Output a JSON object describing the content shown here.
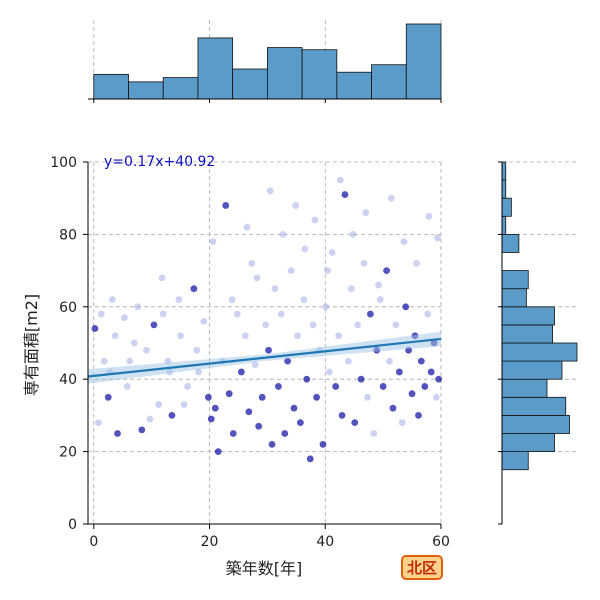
{
  "badge": {
    "text": "北区"
  },
  "colors": {
    "hist_fill": "#5a9bc9",
    "hist_edge": "#111111",
    "point_light": "#aab4e6",
    "point_dark": "#1a1aa8",
    "regression_line": "#1f77b4",
    "confidence_band": "#9fc6e6",
    "equation_text": "#1010c0",
    "grid": "#aaaaaa",
    "badge_border": "#e06010",
    "badge_fill": "#ffd28a",
    "badge_text": "#c02808"
  },
  "chart_data": {
    "type": "scatter",
    "xlabel": "築年数[年]",
    "ylabel": "専有面積[m2]",
    "xlim": [
      -1,
      60
    ],
    "ylim": [
      0,
      100
    ],
    "xticks": [
      0,
      20,
      40,
      60
    ],
    "yticks": [
      0,
      20,
      40,
      60,
      80,
      100
    ],
    "grid": true,
    "regression": {
      "equation": "y=0.17x+40.92",
      "slope": 0.17,
      "intercept": 40.92
    },
    "top_histogram": {
      "bin_edges": [
        0,
        6,
        12,
        18,
        24,
        30,
        36,
        42,
        48,
        54,
        60
      ],
      "counts": [
        23,
        16,
        20,
        57,
        28,
        48,
        46,
        25,
        32,
        70
      ]
    },
    "right_histogram": {
      "bin_edges": [
        15,
        20,
        25,
        30,
        35,
        40,
        45,
        50,
        55,
        60,
        65,
        70,
        75,
        80,
        85,
        90,
        95,
        100
      ],
      "counts": [
        14,
        28,
        36,
        34,
        24,
        32,
        40,
        27,
        28,
        13,
        14,
        0,
        9,
        2,
        5,
        2,
        2
      ]
    },
    "points": [
      [
        0.2,
        54,
        1
      ],
      [
        1.3,
        58,
        0
      ],
      [
        2.5,
        35,
        1
      ],
      [
        3.2,
        62,
        0
      ],
      [
        0.8,
        28,
        0
      ],
      [
        4.1,
        25,
        1
      ],
      [
        5.3,
        57,
        0
      ],
      [
        6.2,
        45,
        0
      ],
      [
        7,
        50,
        0
      ],
      [
        2.8,
        42,
        0
      ],
      [
        8.3,
        26,
        1
      ],
      [
        9.1,
        48,
        0
      ],
      [
        10.4,
        55,
        1
      ],
      [
        11.2,
        33,
        0
      ],
      [
        12,
        58,
        0
      ],
      [
        12.8,
        45,
        0
      ],
      [
        13.5,
        30,
        1
      ],
      [
        14.7,
        62,
        0
      ],
      [
        15,
        52,
        0
      ],
      [
        16.2,
        38,
        0
      ],
      [
        17.3,
        65,
        1
      ],
      [
        18.1,
        42,
        0
      ],
      [
        19,
        56,
        0
      ],
      [
        19.8,
        35,
        1
      ],
      [
        20.3,
        29,
        1
      ],
      [
        21,
        32,
        1
      ],
      [
        21.5,
        20,
        1
      ],
      [
        22.2,
        45,
        0
      ],
      [
        22.8,
        88,
        1
      ],
      [
        23.4,
        36,
        1
      ],
      [
        24.1,
        25,
        1
      ],
      [
        24.8,
        58,
        0
      ],
      [
        25.5,
        42,
        1
      ],
      [
        26.2,
        52,
        0
      ],
      [
        26.8,
        31,
        1
      ],
      [
        27.3,
        72,
        0
      ],
      [
        27.9,
        44,
        0
      ],
      [
        28.5,
        27,
        1
      ],
      [
        29.1,
        35,
        1
      ],
      [
        29.7,
        55,
        0
      ],
      [
        30.2,
        48,
        1
      ],
      [
        30.8,
        22,
        1
      ],
      [
        31.3,
        65,
        0
      ],
      [
        31.9,
        38,
        1
      ],
      [
        32.4,
        58,
        0
      ],
      [
        33,
        25,
        1
      ],
      [
        33.5,
        45,
        1
      ],
      [
        34.1,
        70,
        0
      ],
      [
        34.6,
        32,
        1
      ],
      [
        35.2,
        52,
        0
      ],
      [
        35.7,
        28,
        1
      ],
      [
        36.3,
        62,
        0
      ],
      [
        36.8,
        40,
        1
      ],
      [
        37.4,
        18,
        1
      ],
      [
        37.9,
        55,
        0
      ],
      [
        38.5,
        35,
        1
      ],
      [
        39,
        48,
        0
      ],
      [
        39.6,
        22,
        1
      ],
      [
        40.1,
        60,
        0
      ],
      [
        40.7,
        42,
        0
      ],
      [
        41.2,
        75,
        0
      ],
      [
        41.8,
        38,
        1
      ],
      [
        42.3,
        52,
        0
      ],
      [
        42.9,
        30,
        1
      ],
      [
        43.4,
        91,
        1
      ],
      [
        44,
        45,
        0
      ],
      [
        44.5,
        65,
        0
      ],
      [
        45.1,
        28,
        1
      ],
      [
        45.6,
        55,
        0
      ],
      [
        46.2,
        40,
        1
      ],
      [
        46.7,
        72,
        0
      ],
      [
        47.3,
        35,
        0
      ],
      [
        47.8,
        58,
        1
      ],
      [
        48.4,
        25,
        0
      ],
      [
        48.9,
        48,
        1
      ],
      [
        49.5,
        62,
        0
      ],
      [
        50,
        38,
        1
      ],
      [
        50.6,
        70,
        1
      ],
      [
        51.1,
        45,
        0
      ],
      [
        51.7,
        32,
        1
      ],
      [
        52.2,
        55,
        0
      ],
      [
        52.8,
        42,
        1
      ],
      [
        53.3,
        28,
        0
      ],
      [
        53.9,
        60,
        1
      ],
      [
        54.4,
        48,
        1
      ],
      [
        55,
        36,
        1
      ],
      [
        55.5,
        52,
        1
      ],
      [
        56.1,
        30,
        1
      ],
      [
        56.6,
        45,
        1
      ],
      [
        57.2,
        38,
        1
      ],
      [
        57.7,
        58,
        0
      ],
      [
        58.3,
        42,
        1
      ],
      [
        58.8,
        50,
        1
      ],
      [
        59.2,
        35,
        0
      ],
      [
        59.6,
        40,
        1
      ],
      [
        1.8,
        45,
        0
      ],
      [
        3.7,
        52,
        0
      ],
      [
        5.8,
        38,
        0
      ],
      [
        7.6,
        60,
        0
      ],
      [
        9.7,
        29,
        0
      ],
      [
        11.8,
        68,
        0
      ],
      [
        13.1,
        42,
        0
      ],
      [
        15.6,
        33,
        0
      ],
      [
        17.8,
        48,
        0
      ],
      [
        20.6,
        78,
        0
      ],
      [
        23.9,
        62,
        0
      ],
      [
        26.5,
        82,
        0
      ],
      [
        28.2,
        68,
        0
      ],
      [
        30.5,
        92,
        0
      ],
      [
        32.7,
        80,
        0
      ],
      [
        34.9,
        88,
        0
      ],
      [
        36.5,
        76,
        0
      ],
      [
        38.2,
        84,
        0
      ],
      [
        40.4,
        70,
        0
      ],
      [
        42.6,
        95,
        0
      ],
      [
        44.8,
        80,
        0
      ],
      [
        47,
        86,
        0
      ],
      [
        49.2,
        66,
        0
      ],
      [
        51.4,
        90,
        0
      ],
      [
        53.6,
        78,
        0
      ],
      [
        55.8,
        72,
        0
      ],
      [
        57.9,
        85,
        0
      ],
      [
        59.4,
        79,
        0
      ]
    ]
  }
}
